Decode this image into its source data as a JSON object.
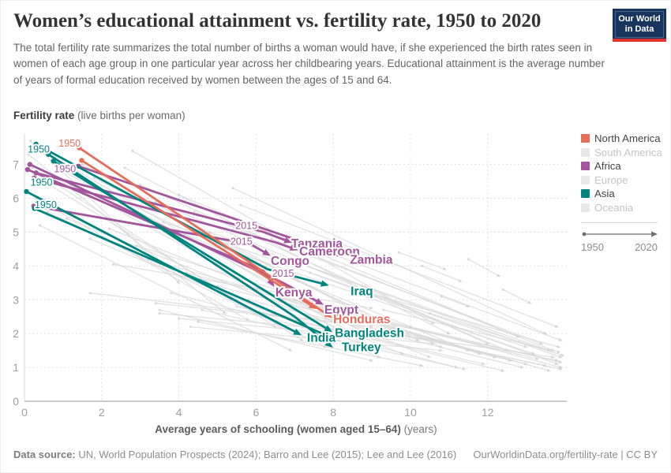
{
  "header": {
    "title": "Women’s educational attainment vs. fertility rate, 1950 to 2020",
    "subtitle": "The total fertility rate summarizes the total number of births a woman would have, if she experienced the birth rates seen in women of each age group in one particular year across her childbearing years. Educational attainment is the average number of years of formal education received by women between the ages of 15 and 64.",
    "logo": {
      "line1": "Our World",
      "line2": "in Data"
    }
  },
  "legend": {
    "items": [
      {
        "label": "North America",
        "color": "#E56E5A",
        "active": true
      },
      {
        "label": "South America",
        "color": "#E8E8E8",
        "active": false
      },
      {
        "label": "Africa",
        "color": "#A2559C",
        "active": true
      },
      {
        "label": "Europe",
        "color": "#E8E8E8",
        "active": false
      },
      {
        "label": "Asia",
        "color": "#00847E",
        "active": true
      },
      {
        "label": "Oceania",
        "color": "#E8E8E8",
        "active": false
      }
    ],
    "timeline": {
      "start": "1950",
      "end": "2020"
    }
  },
  "footer": {
    "source_label": "Data source:",
    "source_text": " UN, World Population Prospects (2024); Barro and Lee (2015); Lee and Lee (2016)",
    "right_text": "OurWorldinData.org/fertility-rate | CC BY"
  },
  "chart_data": {
    "type": "scatter",
    "subtype": "connected-scatter-arrows",
    "title": "Women’s educational attainment vs. fertility rate, 1950 to 2020",
    "xlabel_bold": "Average years of schooling (women aged 15–64)",
    "xlabel_suffix": "(years)",
    "ylabel_bold": "Fertility rate",
    "ylabel_suffix": "(live births per woman)",
    "x_axis": {
      "ticks": [
        0,
        2,
        4,
        6,
        8,
        10,
        12
      ],
      "domain": [
        0,
        14.05
      ],
      "grid": true
    },
    "y_axis": {
      "ticks": [
        0,
        1,
        2,
        3,
        4,
        5,
        6,
        7
      ],
      "domain": [
        0,
        7.9
      ],
      "grid": true
    },
    "legend_position": "right",
    "colors": {
      "North America": "#E56E5A",
      "Africa": "#A2559C",
      "Asia": "#00847E",
      "faded": "#D9D9D9"
    },
    "series": [
      {
        "name": "Tanzania",
        "continent": "Africa",
        "points": [
          [
            0.3,
            6.75
          ],
          [
            6.2,
            5.0
          ],
          [
            6.85,
            4.72
          ]
        ],
        "label": {
          "x": 6.91,
          "y": 4.66
        }
      },
      {
        "name": "Cameroon",
        "continent": "Africa",
        "points": [
          [
            0.25,
            6.6
          ],
          [
            6.5,
            4.7
          ],
          [
            7.0,
            4.5
          ]
        ],
        "label": {
          "x": 7.12,
          "y": 4.43
        }
      },
      {
        "name": "Zambia",
        "continent": "Africa",
        "points": [
          [
            1.4,
            6.95
          ],
          [
            8.2,
            4.33
          ]
        ],
        "label": {
          "x": 8.43,
          "y": 4.18
        }
      },
      {
        "name": "Congo",
        "continent": "Africa",
        "points": [
          [
            0.24,
            5.77
          ],
          [
            5.85,
            4.65
          ],
          [
            6.3,
            4.35
          ]
        ],
        "label": {
          "x": 6.38,
          "y": 4.15
        }
      },
      {
        "name": "Kenya",
        "continent": "Africa",
        "points": [
          [
            0.08,
            6.85
          ],
          [
            6.2,
            3.85
          ],
          [
            6.42,
            3.47
          ]
        ],
        "label": {
          "x": 6.5,
          "y": 3.22
        }
      },
      {
        "name": "Egypt",
        "continent": "Africa",
        "points": [
          [
            0.14,
            7.0
          ],
          [
            6.7,
            3.5
          ],
          [
            7.67,
            2.9
          ]
        ],
        "label": {
          "x": 7.77,
          "y": 2.7
        }
      },
      {
        "name": "Iraq",
        "continent": "Asia",
        "points": [
          [
            0.3,
            7.6
          ],
          [
            6.3,
            3.9
          ],
          [
            7.8,
            3.45
          ]
        ],
        "label": {
          "x": 8.45,
          "y": 3.25
        }
      },
      {
        "name": "Turkey",
        "continent": "Asia",
        "points": [
          [
            0.62,
            7.3
          ],
          [
            7.0,
            2.5
          ],
          [
            7.92,
            1.65
          ]
        ],
        "label": {
          "x": 8.22,
          "y": 1.6
        }
      },
      {
        "name": "Bangladesh",
        "continent": "Asia",
        "points": [
          [
            0.75,
            7.1
          ],
          [
            7.9,
            2.1
          ]
        ],
        "label": {
          "x": 8.04,
          "y": 2.02
        }
      },
      {
        "name": "India",
        "continent": "Asia",
        "points": [
          [
            0.05,
            6.2
          ],
          [
            7.1,
            2.0
          ]
        ],
        "label": {
          "x": 7.32,
          "y": 1.88
        }
      },
      {
        "name": "",
        "continent": "Asia",
        "points": [
          [
            0.26,
            5.7
          ],
          [
            7.88,
            1.92
          ]
        ],
        "label": null
      },
      {
        "name": "Honduras",
        "continent": "North America",
        "points": [
          [
            1.42,
            7.49
          ],
          [
            7.9,
            2.52
          ]
        ],
        "label": {
          "x": 8.0,
          "y": 2.42
        }
      },
      {
        "name": "",
        "continent": "North America",
        "points": [
          [
            1.48,
            7.12
          ],
          [
            7.5,
            2.78
          ]
        ],
        "label": null
      }
    ],
    "year_markers": [
      {
        "text": "1950",
        "x": 1.17,
        "y": 7.62,
        "continent": "North America"
      },
      {
        "text": "1950",
        "x": 0.37,
        "y": 7.45,
        "continent": "Asia"
      },
      {
        "text": "1950",
        "x": 1.05,
        "y": 6.86,
        "continent": "Africa"
      },
      {
        "text": "1950",
        "x": 0.44,
        "y": 6.47,
        "continent": "Asia"
      },
      {
        "text": "1950",
        "x": 0.55,
        "y": 5.8,
        "continent": "Asia"
      },
      {
        "text": "2015",
        "x": 5.75,
        "y": 5.18,
        "continent": "Africa"
      },
      {
        "text": "2015",
        "x": 5.62,
        "y": 4.72,
        "continent": "Africa"
      },
      {
        "text": "2015",
        "x": 6.7,
        "y": 3.78,
        "continent": "Africa"
      }
    ],
    "background_lines": [
      [
        0.15,
        7.7,
        4.0,
        3.5
      ],
      [
        0.1,
        7.3,
        5.2,
        2.6
      ],
      [
        0.2,
        6.9,
        6.5,
        2.2
      ],
      [
        0.5,
        6.5,
        7.2,
        1.8
      ],
      [
        0.3,
        6.0,
        5.8,
        2.4
      ],
      [
        0.8,
        7.2,
        8.5,
        2.0
      ],
      [
        1.0,
        6.8,
        9.0,
        1.9
      ],
      [
        1.2,
        6.4,
        8.8,
        1.7
      ],
      [
        0.6,
        5.6,
        7.8,
        1.6
      ],
      [
        1.5,
        7.0,
        9.5,
        2.1
      ],
      [
        1.8,
        6.6,
        10.2,
        1.8
      ],
      [
        2.0,
        6.2,
        10.8,
        1.6
      ],
      [
        2.3,
        5.8,
        11.5,
        1.5
      ],
      [
        0.4,
        5.2,
        6.9,
        1.5
      ],
      [
        1.1,
        5.4,
        9.8,
        1.4
      ],
      [
        2.6,
        6.9,
        11.0,
        2.0
      ],
      [
        3.0,
        6.4,
        12.0,
        1.7
      ],
      [
        3.4,
        5.9,
        12.5,
        1.5
      ],
      [
        2.2,
        5.1,
        10.5,
        1.3
      ],
      [
        1.7,
        4.8,
        9.2,
        1.3
      ],
      [
        2.9,
        4.6,
        11.8,
        1.4
      ],
      [
        3.6,
        5.3,
        13.0,
        1.6
      ],
      [
        4.0,
        6.1,
        12.8,
        1.9
      ],
      [
        4.4,
        5.6,
        13.4,
        1.7
      ],
      [
        3.2,
        4.2,
        12.2,
        1.3
      ],
      [
        4.8,
        5.0,
        13.6,
        1.5
      ],
      [
        5.2,
        4.5,
        13.2,
        1.4
      ],
      [
        1.7,
        3.2,
        8.4,
        2.3
      ],
      [
        3.4,
        2.9,
        9.0,
        2.2
      ],
      [
        5.6,
        5.8,
        13.8,
        2.2
      ],
      [
        6.0,
        5.2,
        13.9,
        1.8
      ],
      [
        3.5,
        2.6,
        10.0,
        1.9
      ],
      [
        4.2,
        3.8,
        12.6,
        1.2
      ],
      [
        5.0,
        3.4,
        13.0,
        1.1
      ],
      [
        6.4,
        4.8,
        13.7,
        1.5
      ],
      [
        3.8,
        3.2,
        11.2,
        1.0
      ],
      [
        6.8,
        4.2,
        13.9,
        1.3
      ],
      [
        7.4,
        3.8,
        13.8,
        1.1
      ],
      [
        2.8,
        7.4,
        10.6,
        2.3
      ],
      [
        5.4,
        6.3,
        13.5,
        2.0
      ],
      [
        7.0,
        3.0,
        13.6,
        0.9
      ],
      [
        8.0,
        2.8,
        13.9,
        1.0
      ],
      [
        4.3,
        2.2,
        10.8,
        1.5
      ],
      [
        6.2,
        2.6,
        12.4,
        0.9
      ],
      [
        2.3,
        4.05,
        9.0,
        2.75
      ],
      [
        9.0,
        2.4,
        13.8,
        1.2
      ],
      [
        4.6,
        2.7,
        11.4,
        0.95
      ],
      [
        4.0,
        2.45,
        10.6,
        1.7
      ],
      [
        8.6,
        3.3,
        13.85,
        1.6
      ],
      [
        9.6,
        2.0,
        13.9,
        0.95
      ],
      [
        10.5,
        2.6,
        13.95,
        1.35
      ],
      [
        5.8,
        3.0,
        12.9,
        1.0
      ],
      [
        10.3,
        4.0,
        11.3,
        3.55
      ],
      [
        11.5,
        4.2,
        12.3,
        3.7
      ],
      [
        10.8,
        3.1,
        11.5,
        2.8
      ],
      [
        12.4,
        3.3,
        13.1,
        2.9
      ],
      [
        9.7,
        4.4,
        10.9,
        3.9
      ],
      [
        6.6,
        3.1,
        13.3,
        1.25
      ],
      [
        7.8,
        2.45,
        13.5,
        1.05
      ],
      [
        5.5,
        2.8,
        11.9,
        1.1
      ],
      [
        8.8,
        2.1,
        13.7,
        1.3
      ],
      [
        9.3,
        2.7,
        13.85,
        1.45
      ],
      [
        10.0,
        2.2,
        13.9,
        1.15
      ],
      [
        4.5,
        2.35,
        10.3,
        1.05
      ],
      [
        3.5,
        2.7,
        9.0,
        1.2
      ]
    ]
  }
}
